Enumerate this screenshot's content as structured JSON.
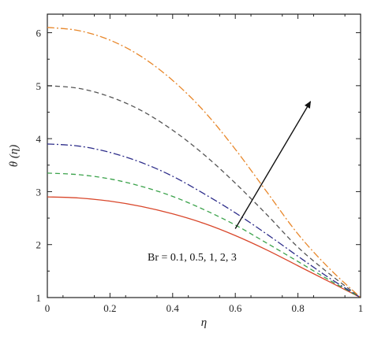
{
  "chart_data": {
    "type": "line",
    "title": "",
    "xlabel": "η",
    "ylabel": "θ (η)",
    "xlim": [
      0,
      1
    ],
    "ylim": [
      1,
      6.35
    ],
    "x_ticks": [
      0,
      0.2,
      0.4,
      0.6,
      0.8,
      1
    ],
    "x_tick_labels": [
      "0",
      "0.2",
      "0.4",
      "0.6",
      "0.8",
      "1"
    ],
    "y_ticks": [
      1,
      2,
      3,
      4,
      5,
      6
    ],
    "y_tick_labels": [
      "1",
      "2",
      "3",
      "4",
      "5",
      "6"
    ],
    "grid": false,
    "legend": "none",
    "annotation": {
      "text": "Br = 0.1, 0.5, 1, 2, 3",
      "arrow_from": [
        0.6,
        2.3
      ],
      "arrow_to": [
        0.84,
        4.7
      ]
    },
    "x": [
      0,
      0.1,
      0.2,
      0.3,
      0.4,
      0.5,
      0.6,
      0.7,
      0.8,
      0.9,
      1.0
    ],
    "series": [
      {
        "values": [
          2.9,
          2.88,
          2.82,
          2.72,
          2.58,
          2.4,
          2.17,
          1.9,
          1.6,
          1.3,
          1.0
        ],
        "color": "#d9472b",
        "dash": "solid"
      },
      {
        "values": [
          3.35,
          3.32,
          3.24,
          3.1,
          2.91,
          2.66,
          2.37,
          2.03,
          1.68,
          1.33,
          1.0
        ],
        "color": "#3aa24a",
        "dash": "dashed"
      },
      {
        "values": [
          3.9,
          3.86,
          3.74,
          3.55,
          3.29,
          2.96,
          2.6,
          2.2,
          1.78,
          1.37,
          1.0
        ],
        "color": "#2d2d8a",
        "dash": "dashdot"
      },
      {
        "values": [
          5.0,
          4.95,
          4.79,
          4.53,
          4.16,
          3.7,
          3.16,
          2.57,
          1.95,
          1.45,
          1.0
        ],
        "color": "#555555",
        "dash": "dashed"
      },
      {
        "values": [
          6.1,
          6.04,
          5.86,
          5.55,
          5.1,
          4.52,
          3.8,
          3.0,
          2.2,
          1.55,
          1.0
        ],
        "color": "#e8872a",
        "dash": "dashdot"
      }
    ]
  }
}
